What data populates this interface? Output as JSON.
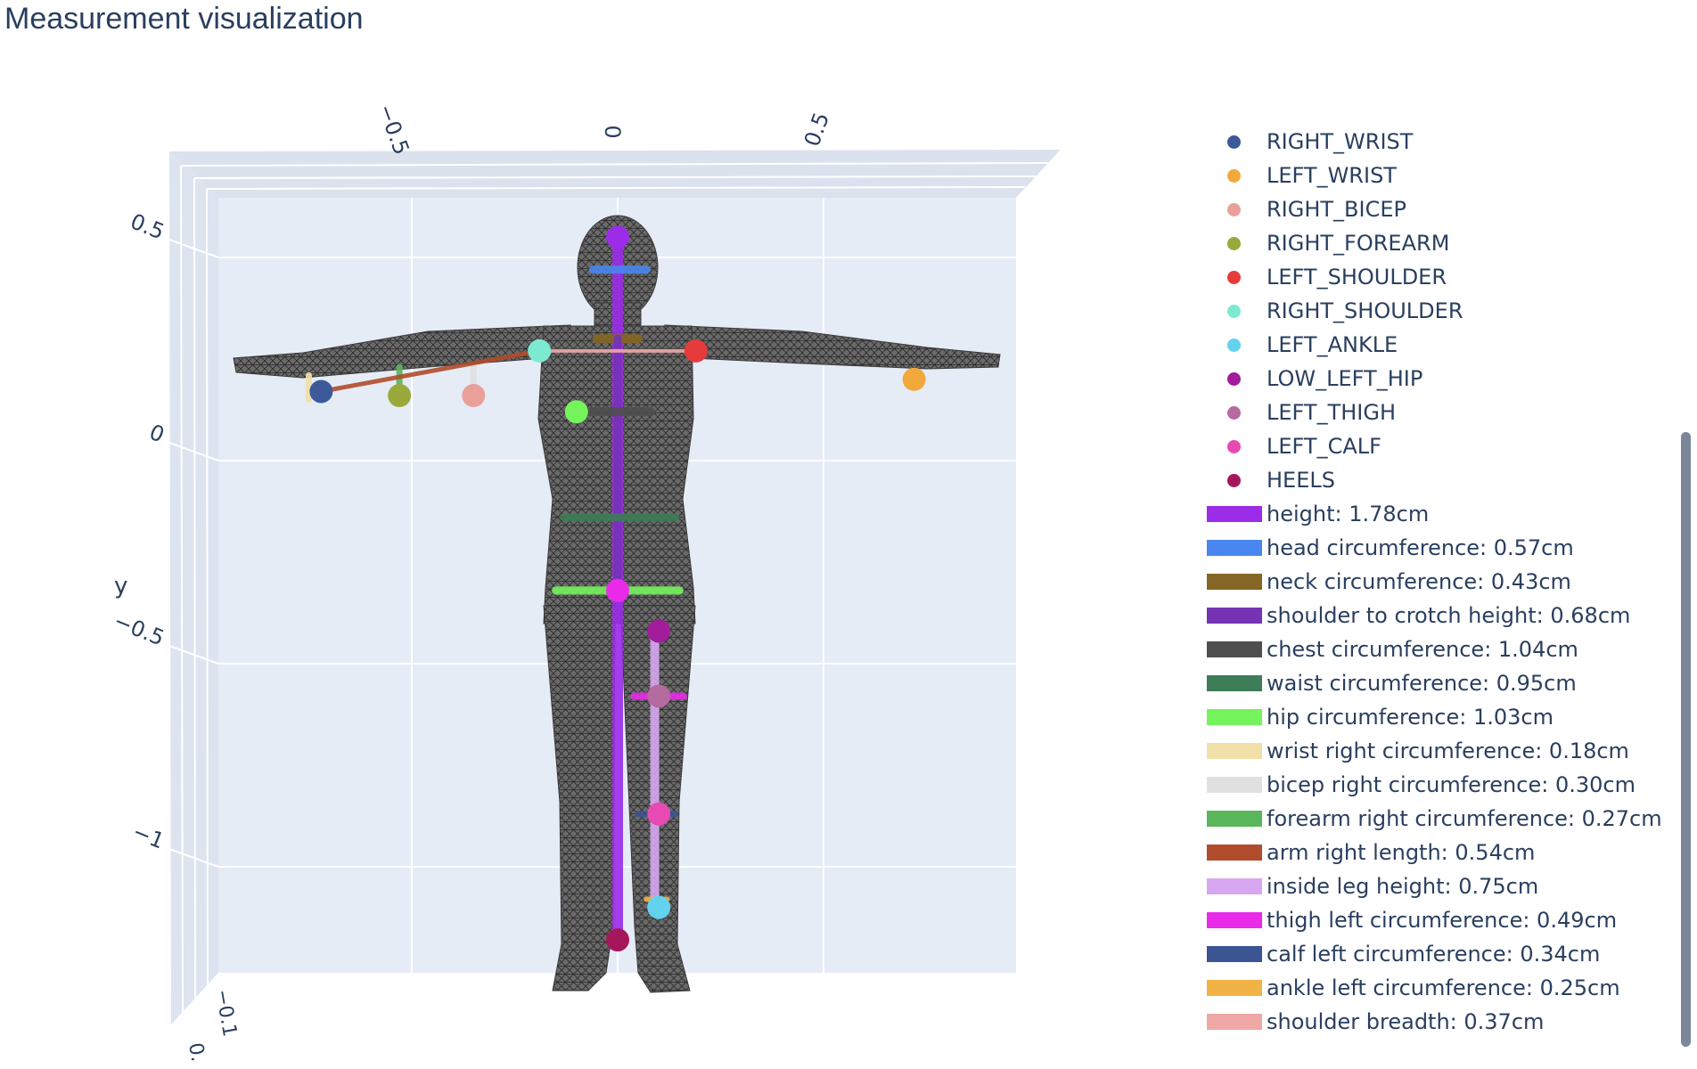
{
  "title": "Measurement visualization",
  "chart_data": {
    "type": "scatter3d",
    "scene": {
      "x_ticks": [
        "−0.5",
        "0",
        "0.5"
      ],
      "y_ticks": [
        "0.5",
        "0",
        "−0.5",
        "−1"
      ],
      "z_ticks": [
        "−0.1",
        "0."
      ],
      "ylabel": "y",
      "bgcolor": "#e5ecf6",
      "grid": true,
      "mesh_color": "#555555"
    },
    "landmarks": [
      {
        "name": "RIGHT_WRIST",
        "color": "#3c5a9a",
        "x": -0.72,
        "y": 0.17
      },
      {
        "name": "LEFT_WRIST",
        "color": "#f2a93b",
        "x": 0.72,
        "y": 0.2
      },
      {
        "name": "RIGHT_BICEP",
        "color": "#eaa09a",
        "x": -0.35,
        "y": 0.16
      },
      {
        "name": "RIGHT_FOREARM",
        "color": "#9aa93b",
        "x": -0.53,
        "y": 0.16
      },
      {
        "name": "LEFT_SHOULDER",
        "color": "#e63b3b",
        "x": 0.19,
        "y": 0.27
      },
      {
        "name": "RIGHT_SHOULDER",
        "color": "#7bead0",
        "x": -0.19,
        "y": 0.27
      },
      {
        "name": "LEFT_ANKLE",
        "color": "#63d2ef",
        "x": 0.1,
        "y": -1.1
      },
      {
        "name": "LOW_LEFT_HIP",
        "color": "#a21c9c",
        "x": 0.1,
        "y": -0.42
      },
      {
        "name": "LEFT_THIGH",
        "color": "#b56aa0",
        "x": 0.1,
        "y": -0.58
      },
      {
        "name": "LEFT_CALF",
        "color": "#e84ab3",
        "x": 0.1,
        "y": -0.87
      },
      {
        "name": "HEELS",
        "color": "#a5175a",
        "x": 0.0,
        "y": -1.18
      }
    ],
    "measurements": [
      {
        "label": "height: 1.78cm",
        "color": "#9b2ce8"
      },
      {
        "label": "head circumference: 0.57cm",
        "color": "#4a86ef"
      },
      {
        "label": "neck circumference: 0.43cm",
        "color": "#856624"
      },
      {
        "label": "shoulder to crotch height: 0.68cm",
        "color": "#7533b4"
      },
      {
        "label": "chest circumference: 1.04cm",
        "color": "#4f4f4f"
      },
      {
        "label": "waist circumference: 0.95cm",
        "color": "#3d7d57"
      },
      {
        "label": "hip circumference: 1.03cm",
        "color": "#74f45a"
      },
      {
        "label": "wrist right circumference: 0.18cm",
        "color": "#f1e0a8"
      },
      {
        "label": "bicep right circumference: 0.30cm",
        "color": "#e0e0e0"
      },
      {
        "label": "forearm right circumference: 0.27cm",
        "color": "#59b65b"
      },
      {
        "label": "arm right length: 0.54cm",
        "color": "#b14c2c"
      },
      {
        "label": "inside leg height: 0.75cm",
        "color": "#d7a8f1"
      },
      {
        "label": "thigh left circumference: 0.49cm",
        "color": "#e92be9"
      },
      {
        "label": "calf left circumference: 0.34cm",
        "color": "#3b5593"
      },
      {
        "label": "ankle left circumference: 0.25cm",
        "color": "#f1b345"
      },
      {
        "label": "shoulder breadth: 0.37cm",
        "color": "#eea9a6"
      }
    ]
  }
}
